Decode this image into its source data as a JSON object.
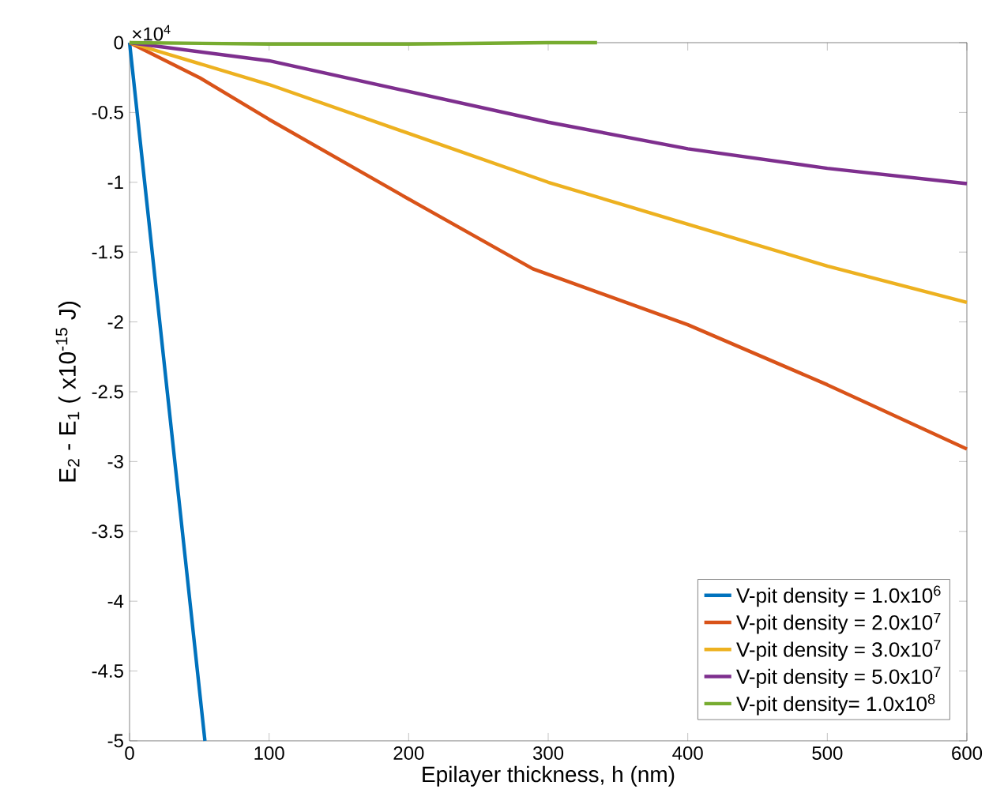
{
  "chart_data": {
    "type": "line",
    "xlabel": "Epilayer thickness, h (nm)",
    "ylabel": "E$_{2}$ - E$_{1}$ ( x10$^{-15}$ J)",
    "annotations": [
      "×10$^{4}$"
    ],
    "xlim": [
      0,
      600
    ],
    "ylim": [
      -5,
      0
    ],
    "xticks": [
      0,
      100,
      200,
      300,
      400,
      500,
      600
    ],
    "yticks": [
      -5,
      -4.5,
      -4,
      -3.5,
      -3,
      -2.5,
      -2,
      -1.5,
      -1,
      -0.5,
      0
    ],
    "legend": "bottom right",
    "grid": false,
    "marker": "none",
    "line_style": "solid",
    "series": [
      {
        "name": "V-pit density = 1.0x10$^{6}$",
        "color": "#0072bd",
        "x": [
          0,
          20,
          40,
          54
        ],
        "values": [
          0,
          -1.85,
          -3.7,
          -5
        ]
      },
      {
        "name": "V-pit density = 2.0x10$^{7}$",
        "color": "#d95319",
        "x": [
          0,
          50,
          100,
          200,
          289,
          400,
          500,
          600
        ],
        "values": [
          0,
          -0.25,
          -0.55,
          -1.12,
          -1.62,
          -2.02,
          -2.45,
          -2.91
        ]
      },
      {
        "name": "V-pit density = 3.0x10$^{7}$",
        "color": "#edb120",
        "x": [
          0,
          100,
          200,
          300,
          400,
          500,
          600
        ],
        "values": [
          0,
          -0.3,
          -0.65,
          -1.0,
          -1.3,
          -1.6,
          -1.86
        ]
      },
      {
        "name": "V-pit density = 5.0x10$^{7}$",
        "color": "#7e2f8e",
        "x": [
          0,
          100,
          200,
          300,
          400,
          500,
          600
        ],
        "values": [
          0,
          -0.13,
          -0.35,
          -0.57,
          -0.76,
          -0.9,
          -1.01
        ]
      },
      {
        "name": "V-pit density= 1.0x10$^{8}$",
        "color": "#77ac30",
        "x": [
          0,
          100,
          200,
          300,
          335
        ],
        "values": [
          0,
          -0.01,
          -0.01,
          0,
          0
        ]
      }
    ]
  }
}
